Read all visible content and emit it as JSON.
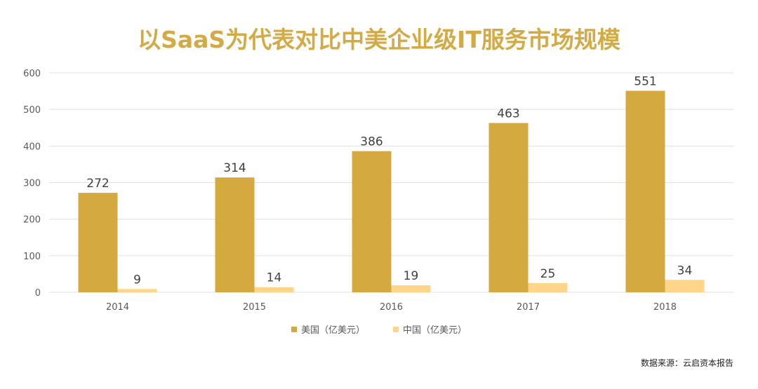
{
  "title": "以SaaS为代表对比中美企业级IT服务市场规模",
  "source": "数据来源：云启资本报告",
  "colors": {
    "usa": "#d4a93f",
    "china": "#ffd58a",
    "grid": "#e0e0e0",
    "axis_text": "#595959",
    "label_text": "#404040"
  },
  "chart_data": {
    "type": "bar",
    "categories": [
      "2014",
      "2015",
      "2016",
      "2017",
      "2018"
    ],
    "series": [
      {
        "name": "美国（亿美元）",
        "values": [
          272,
          314,
          386,
          463,
          551
        ]
      },
      {
        "name": "中国（亿美元）",
        "values": [
          9,
          14,
          19,
          25,
          34
        ]
      }
    ],
    "ylim": [
      0,
      600
    ],
    "yticks": [
      "0",
      "100",
      "200",
      "300",
      "400",
      "500",
      "600"
    ],
    "grid": true,
    "legend_position": "bottom"
  }
}
